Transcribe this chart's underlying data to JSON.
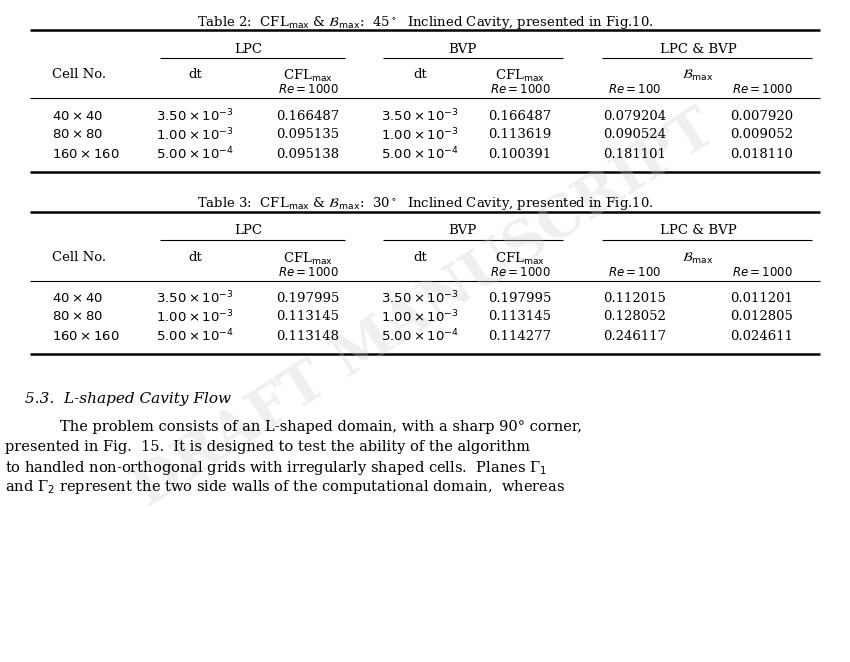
{
  "table2_title": "Table 2:  CFL$_{\\mathrm{max}}$ & $\\mathcal{B}_{\\mathrm{max}}$:  45$^\\circ$  Inclined Cavity, presented in Fig.10.",
  "table3_title": "Table 3:  CFL$_{\\mathrm{max}}$ & $\\mathcal{B}_{\\mathrm{max}}$:  30$^\\circ$  Inclined Cavity, presented in Fig.10.",
  "section_title": "5.3.  L-shaped Cavity Flow",
  "background_color": "#ffffff",
  "watermark_color": "#cccccc",
  "table2_rows": [
    [
      "$40\\times40$",
      "$3.50\\times10^{-3}$",
      "0.166487",
      "$3.50\\times10^{-3}$",
      "0.166487",
      "0.079204",
      "0.007920"
    ],
    [
      "$80\\times80$",
      "$1.00\\times10^{-3}$",
      "0.095135",
      "$1.00\\times10^{-3}$",
      "0.113619",
      "0.090524",
      "0.009052"
    ],
    [
      "$160\\times160$",
      "$5.00\\times10^{-4}$",
      "0.095138",
      "$5.00\\times10^{-4}$",
      "0.100391",
      "0.181101",
      "0.018110"
    ]
  ],
  "table3_rows": [
    [
      "$40\\times40$",
      "$3.50\\times10^{-3}$",
      "0.197995",
      "$3.50\\times10^{-3}$",
      "0.197995",
      "0.112015",
      "0.011201"
    ],
    [
      "$80\\times80$",
      "$1.00\\times10^{-3}$",
      "0.113145",
      "$1.00\\times10^{-3}$",
      "0.113145",
      "0.128052",
      "0.012805"
    ],
    [
      "$160\\times160$",
      "$5.00\\times10^{-4}$",
      "0.113148",
      "$5.00\\times10^{-4}$",
      "0.114277",
      "0.246117",
      "0.024611"
    ]
  ],
  "para_lines": [
    "The problem consists of an L-shaped domain, with a sharp 90° corner,",
    "presented in Fig.  15.  It is designed to test the ability of the algorithm",
    "to handled non-orthogonal grids with irregularly shaped cells.  Planes Γ$_1$",
    "and Γ$_2$ represent the two side walls of the computational domain,  whereas"
  ]
}
